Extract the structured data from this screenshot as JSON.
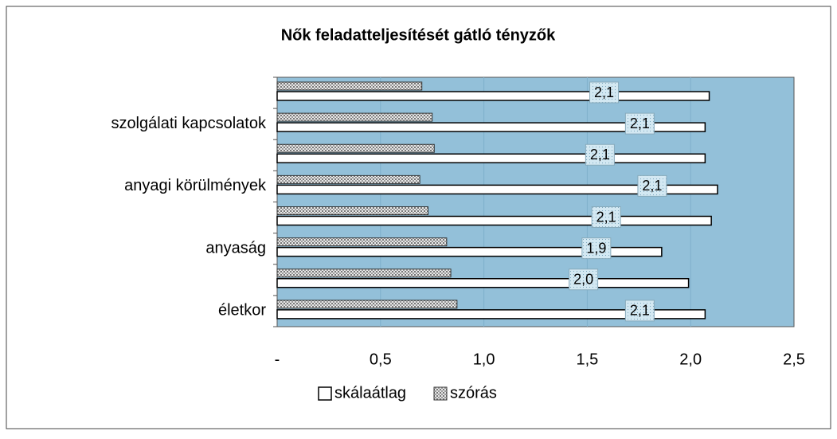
{
  "chart_data": {
    "type": "bar",
    "orientation": "horizontal",
    "title": "Nők feladatteljesítését gátló tényzők",
    "categories": [
      "életkor",
      null,
      "anyaság",
      null,
      "anyagi körülmények",
      null,
      "szolgálati kapcsolatok",
      null
    ],
    "series": [
      {
        "name": "skálaátlag",
        "color": "#ffffff",
        "values": [
          2.07,
          1.99,
          1.86,
          2.1,
          2.13,
          2.07,
          2.07,
          2.09
        ],
        "value_labels": [
          "2,1",
          "2,0",
          "1,9",
          "2,1",
          "2,1",
          "2,1",
          "2,1",
          "2,1"
        ]
      },
      {
        "name": "szórás",
        "color": "#9a9a9a",
        "values": [
          0.87,
          0.84,
          0.82,
          0.73,
          0.69,
          0.76,
          0.75,
          0.7
        ]
      }
    ],
    "xlim": [
      0,
      2.5
    ],
    "xticks": [
      {
        "value": 0,
        "label": "-"
      },
      {
        "value": 0.5,
        "label": "0,5"
      },
      {
        "value": 1.0,
        "label": "1,0"
      },
      {
        "value": 1.5,
        "label": "1,5"
      },
      {
        "value": 2.0,
        "label": "2,0"
      },
      {
        "value": 2.5,
        "label": "2,5"
      }
    ],
    "grid": true,
    "legend": "bottom"
  }
}
